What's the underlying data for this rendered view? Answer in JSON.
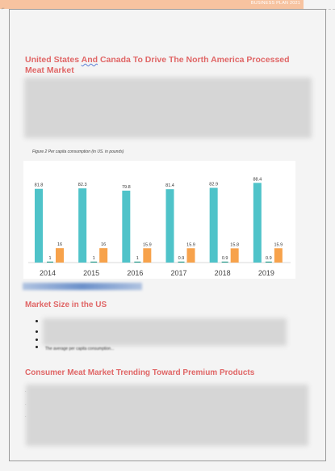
{
  "header": {
    "title": "BUSINESS PLAN 2021"
  },
  "section1": {
    "title_part1": "United States ",
    "title_squiggle": "And",
    "title_part2": " Canada To Drive The North America Processed Meat Market"
  },
  "figure": {
    "caption": "Figure 2 Per capita consumption (in US. in pounds)"
  },
  "chart_data": {
    "type": "bar",
    "categories": [
      "2014",
      "2015",
      "2016",
      "2017",
      "2018",
      "2019"
    ],
    "series": [
      {
        "values": [
          81.8,
          82.3,
          79.8,
          81.4,
          82.9,
          88.4
        ],
        "color": "#4fc3c9"
      },
      {
        "values": [
          1,
          1,
          1,
          0.9,
          0.9,
          0.9
        ],
        "color": "#2a9d8f"
      },
      {
        "values": [
          16,
          16,
          15.9,
          15.9,
          15.8,
          15.9
        ],
        "color": "#f7a24b"
      }
    ],
    "ylim": [
      0,
      95
    ],
    "grid": false,
    "title": "",
    "xlabel": "",
    "ylabel": ""
  },
  "section2": {
    "title": "Market Size in the US",
    "tail_line": "The average per capita consumption..."
  },
  "section3": {
    "title": "Consumer Meat Market Trending Toward Premium Products"
  }
}
